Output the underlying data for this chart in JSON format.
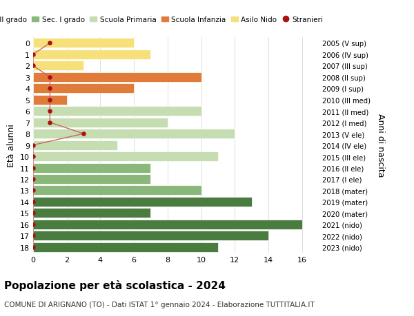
{
  "ages": [
    18,
    17,
    16,
    15,
    14,
    13,
    12,
    11,
    10,
    9,
    8,
    7,
    6,
    5,
    4,
    3,
    2,
    1,
    0
  ],
  "right_labels": [
    "2005 (V sup)",
    "2006 (IV sup)",
    "2007 (III sup)",
    "2008 (II sup)",
    "2009 (I sup)",
    "2010 (III med)",
    "2011 (II med)",
    "2012 (I med)",
    "2013 (V ele)",
    "2014 (IV ele)",
    "2015 (III ele)",
    "2016 (II ele)",
    "2017 (I ele)",
    "2018 (mater)",
    "2019 (mater)",
    "2020 (mater)",
    "2021 (nido)",
    "2022 (nido)",
    "2023 (nido)"
  ],
  "bar_values": [
    11,
    14,
    16,
    7,
    13,
    10,
    7,
    7,
    11,
    5,
    12,
    8,
    10,
    2,
    6,
    10,
    3,
    7,
    6
  ],
  "bar_colors": [
    "#4a7c3f",
    "#4a7c3f",
    "#4a7c3f",
    "#4a7c3f",
    "#4a7c3f",
    "#8ab87a",
    "#8ab87a",
    "#8ab87a",
    "#c5ddb0",
    "#c5ddb0",
    "#c5ddb0",
    "#c5ddb0",
    "#c5ddb0",
    "#e07b39",
    "#e07b39",
    "#e07b39",
    "#f5e07a",
    "#f5e07a",
    "#f5e07a"
  ],
  "stranieri_values": [
    0,
    0,
    0,
    0,
    0,
    0,
    0,
    0,
    0,
    0,
    3,
    1,
    1,
    1,
    1,
    1,
    0,
    0,
    1
  ],
  "legend_labels": [
    "Sec. II grado",
    "Sec. I grado",
    "Scuola Primaria",
    "Scuola Infanzia",
    "Asilo Nido",
    "Stranieri"
  ],
  "legend_colors": [
    "#4a7c3f",
    "#8ab87a",
    "#c5ddb0",
    "#e07b39",
    "#f5e07a",
    "#cc2222"
  ],
  "ylabel_left": "Età alunni",
  "ylabel_right": "Anni di nascita",
  "title": "Popolazione per età scolastica - 2024",
  "subtitle": "COMUNE DI ARIGNANO (TO) - Dati ISTAT 1° gennaio 2024 - Elaborazione TUTTITALIA.IT",
  "xlim": [
    0,
    17
  ],
  "xticks": [
    0,
    2,
    4,
    6,
    8,
    10,
    12,
    14,
    16
  ],
  "background_color": "#ffffff",
  "grid_color": "#dddddd",
  "stranieri_color": "#aa1111",
  "stranieri_line_color": "#cc6666"
}
